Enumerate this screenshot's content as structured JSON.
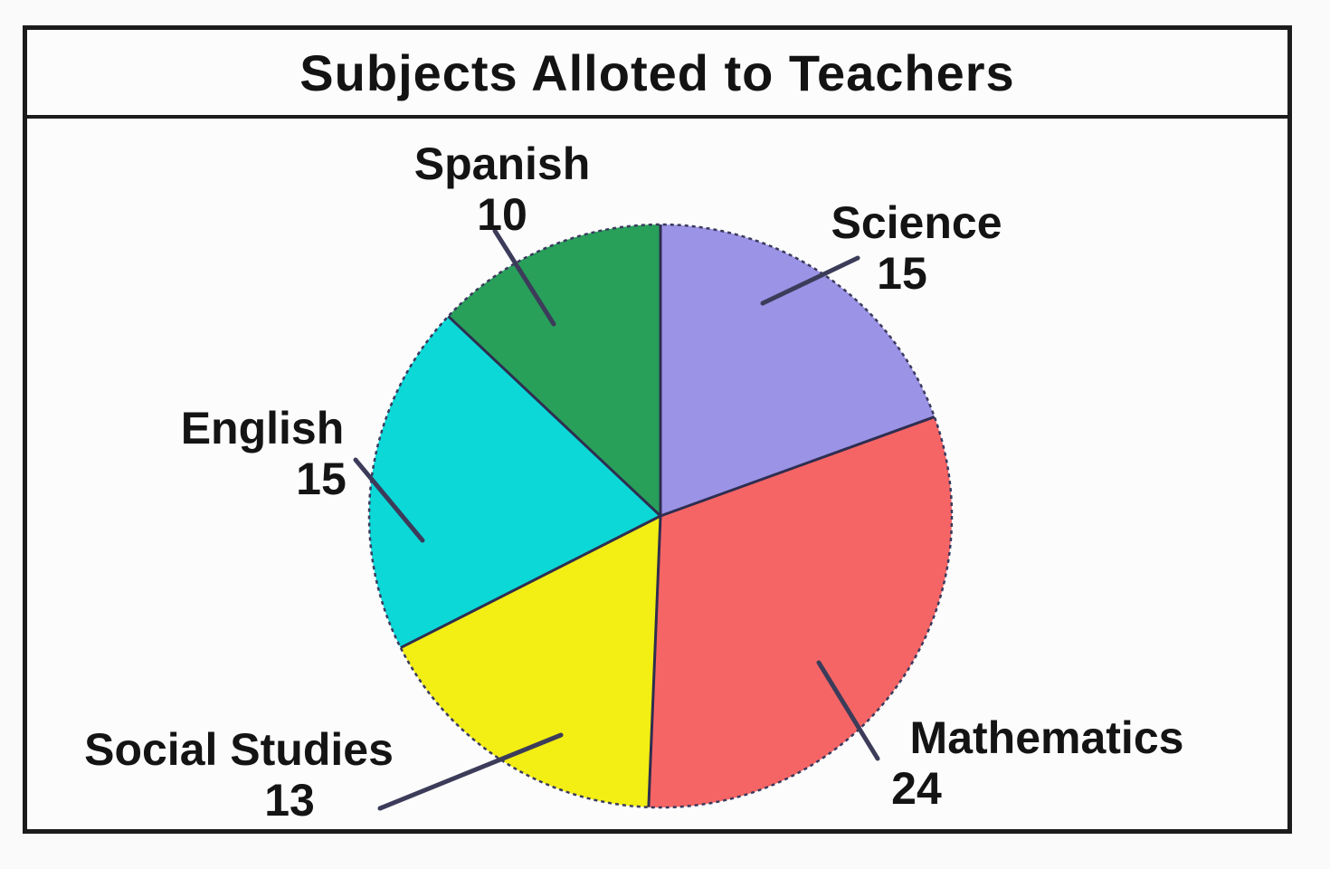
{
  "title": "Subjects Alloted to Teachers",
  "chart_data": {
    "type": "pie",
    "title": "Subjects Alloted to Teachers",
    "start_angle_deg": -90,
    "direction": "clockwise",
    "legend": "none",
    "label_style": "outside-with-leader-lines",
    "slices": [
      {
        "label": "Science",
        "value": 15,
        "color": "#9b93e6"
      },
      {
        "label": "Mathematics",
        "value": 24,
        "color": "#f66565"
      },
      {
        "label": "Social Studies",
        "value": 13,
        "color": "#f3ee13"
      },
      {
        "label": "English",
        "value": 15,
        "color": "#0cd8d8"
      },
      {
        "label": "Spanish",
        "value": 10,
        "color": "#28a05a"
      }
    ],
    "edge_color": "#2e2e50",
    "rim_color": "#3a3a5e",
    "leader_color": "#3c3c5a"
  }
}
